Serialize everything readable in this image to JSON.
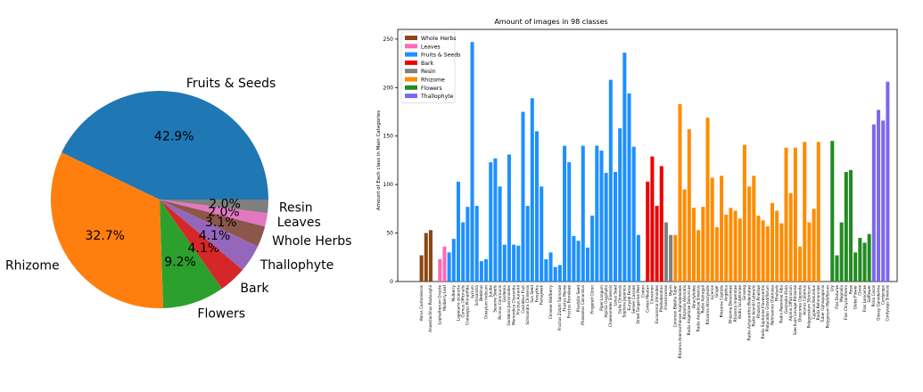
{
  "chart_data": [
    {
      "type": "pie",
      "title": "",
      "labels": [
        "Fruits & Seeds",
        "Rhizome",
        "Flowers",
        "Bark",
        "Thallophyte",
        "Whole Herbs",
        "Leaves",
        "Resin"
      ],
      "values": [
        42.9,
        32.7,
        9.2,
        4.1,
        4.1,
        3.1,
        2.0,
        2.0
      ],
      "value_labels": [
        "42.9%",
        "32.7%",
        "9.2%",
        "4.1%",
        "4.1%",
        "3.1%",
        "2.0%",
        "2.0%"
      ],
      "colors": [
        "#1f77b4",
        "#ff7f0e",
        "#2ca02c",
        "#d62728",
        "#9467bd",
        "#8c564b",
        "#e377c2",
        "#7f7f7f"
      ]
    },
    {
      "type": "bar",
      "title": "Amount of images in 98 classes",
      "xlabel": "",
      "ylabel": "Amount of Each class in Main Categories",
      "ylim": [
        0,
        260
      ],
      "yticks": [
        "0",
        "50",
        "100",
        "150",
        "200",
        "250"
      ],
      "ytick_values": [
        0,
        50,
        100,
        150,
        200,
        250
      ],
      "legend_position": "top-left",
      "series": [
        {
          "name": "Whole Herbs",
          "color": "#8b4513",
          "categories": [
            "Abrus Cantoniensis",
            "",
            "Anoectochilus Roxburghii",
            ""
          ],
          "values": [
            27,
            50,
            53,
            0
          ]
        },
        {
          "name": "Leaves",
          "color": "#ff69b4",
          "categories": [
            "Lophatherum Gracile",
            "Mulberry Leaf"
          ],
          "values": [
            23,
            36
          ]
        },
        {
          "name": "Fruits & Seeds",
          "color": "#1e90ff",
          "categories": [
            "",
            "Mulberry",
            "Lagenaria siceraria",
            "Cornus Officinalis",
            "Crataegus Pinnatifida",
            "Lycium",
            "Schisandra",
            "Betelnut",
            "Oroxylum Indicum",
            "Jujube",
            "Sesame Seeds",
            "Ricinus Communis",
            "Gardenia",
            "Gardenia Jasminoides",
            "Momordica Charantia",
            "Fructus Aurantii",
            "Cocklebur Fruit",
            "Schisandra Chinensis",
            "Sun Seed",
            "Forsythia",
            "Fenugreek",
            "",
            "Chinese Wolfberry",
            "",
            "Fructus Ziziphi Spinosae",
            "Fructus Mume",
            "Fructus Psoraleae",
            "",
            "Pharbitis Seed",
            "Phaseolus Calcaratus",
            "",
            "Fingered Citron",
            "",
            "Piper Longum",
            "Alpinia Oxyphylla",
            "Chaenomeles Sinensis",
            "Lotus Seed",
            "Galla Chinensis",
            "Sophora Japonica",
            "Euryale Ferox",
            "Semen Cassiae",
            "Dried Tangerine Peel",
            "Croton"
          ],
          "values": [
            30,
            44,
            103,
            61,
            77,
            247,
            78,
            21,
            23,
            123,
            127,
            98,
            38,
            131,
            38,
            37,
            175,
            78,
            189,
            155,
            98,
            23,
            30,
            15,
            17,
            140,
            123,
            47,
            42,
            140,
            35,
            68,
            140,
            135,
            112,
            208,
            113,
            158,
            236,
            194,
            139,
            48,
            0
          ]
        },
        {
          "name": "Bark",
          "color": "#ee0000",
          "categories": [
            "Cortex Moutan",
            "Cinnamon",
            "Eucommia Ulmoides",
            "Phellodendron"
          ],
          "values": [
            103,
            129,
            78,
            119
          ]
        },
        {
          "name": "Resin",
          "color": "#808080",
          "categories": [
            "Frankincense",
            "Myrrh"
          ],
          "values": [
            61,
            48
          ]
        },
        {
          "name": "Rhizome",
          "color": "#ff8c00",
          "categories": [
            "Common Bletilla Tuber",
            "Rhizoma Anemarrhenae Asphodeloides",
            "Rhizoma Alismatis",
            "Radix Angelicae Dahuricae",
            "Atractylodes",
            "Radix Angelicae Sinensis",
            "Radix Astragali",
            "Rhizoma Atractylodis",
            "Licorice",
            "Ginger",
            "Rhizoma Coptidis",
            "Angelica",
            "Rhizoma Dioscoreae",
            "Rhizoma Imperatae",
            "Radix Scutellariae",
            "Ginseng",
            "Radix Achyranthis Bidentatae",
            "Radix Aconiti Lateralis",
            "Rhizoma Pinelliae",
            "Radix Sophorae Flavescentis",
            "Platycodon Grandiflorum",
            "Rehmannia Glutinosa",
            "Rhubarb",
            "Radix Paeoniae Alba",
            "Gastrodia Elata",
            "Alpinia Officinarum",
            "Szechuan Lovage Rhizome",
            "Dioscorea Opposita",
            "Acorus Calamus",
            "Polygonatum Sibiricum",
            "Cyperus Rotundus",
            "Radix Rehmanniae",
            "Tuber Ophiopogonis",
            "Polygonum Multiflorum"
          ],
          "values": [
            48,
            183,
            95,
            157,
            76,
            53,
            77,
            169,
            107,
            56,
            109,
            69,
            76,
            73,
            65,
            141,
            98,
            109,
            68,
            63,
            57,
            81,
            73,
            60,
            138,
            91,
            138,
            36,
            144,
            61,
            75,
            144,
            0,
            0
          ]
        },
        {
          "name": "Flowers",
          "color": "#228b22",
          "categories": [
            "Lily",
            "Flos Daturae",
            "Magnolia",
            "Flos Chrysanthemi",
            "Rose",
            "Globe Flower",
            "Clove",
            "Flos Lonicerae",
            "Safflower"
          ],
          "values": [
            145,
            27,
            61,
            113,
            115,
            30,
            45,
            40,
            49
          ]
        },
        {
          "name": "Thallophyte",
          "color": "#7b68ee",
          "categories": [
            "Poria Cocos",
            "Glossy Ganoderma",
            "Cordyceps",
            "Cordyceps Sinensis"
          ],
          "values": [
            162,
            177,
            166,
            206
          ]
        }
      ]
    }
  ]
}
